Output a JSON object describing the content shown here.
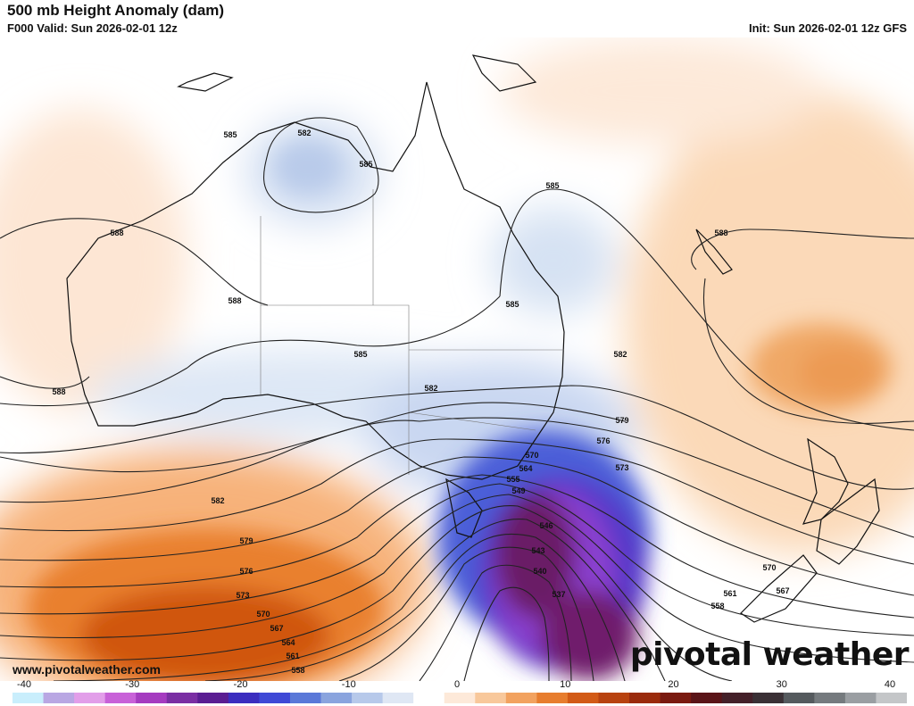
{
  "header": {
    "title": "500 mb Height Anomaly (dam)",
    "valid": "F000 Valid: Sun 2026-02-01 12z",
    "init": "Init: Sun 2026-02-01 12z GFS"
  },
  "watermark": "www.pivotalweather.com",
  "brand": "pivotal weather",
  "contour_labels": [
    {
      "v": "582"
    },
    {
      "v": "585"
    },
    {
      "v": "585"
    },
    {
      "v": "588"
    },
    {
      "v": "588"
    },
    {
      "v": "588"
    },
    {
      "v": "588"
    },
    {
      "v": "585"
    },
    {
      "v": "585"
    },
    {
      "v": "585"
    },
    {
      "v": "582"
    },
    {
      "v": "582"
    },
    {
      "v": "582"
    },
    {
      "v": "579"
    },
    {
      "v": "576"
    },
    {
      "v": "573"
    },
    {
      "v": "570"
    },
    {
      "v": "567"
    },
    {
      "v": "564"
    },
    {
      "v": "561"
    },
    {
      "v": "558"
    },
    {
      "v": "579"
    },
    {
      "v": "576"
    },
    {
      "v": "573"
    },
    {
      "v": "570"
    },
    {
      "v": "564"
    },
    {
      "v": "555"
    },
    {
      "v": "549"
    },
    {
      "v": "546"
    },
    {
      "v": "543"
    },
    {
      "v": "540"
    },
    {
      "v": "537"
    },
    {
      "v": "570"
    },
    {
      "v": "567"
    },
    {
      "v": "561"
    },
    {
      "v": "558"
    }
  ],
  "colorbar": {
    "ticks": [
      "-40",
      "-30",
      "-20",
      "-10",
      "0",
      "10",
      "20",
      "30",
      "40"
    ],
    "colors": [
      "#c9eefc",
      "#b9a7e3",
      "#e29ee9",
      "#c861d8",
      "#a53bc0",
      "#7a2ea3",
      "#5a1d92",
      "#3b2dbf",
      "#3f49d6",
      "#5a78d8",
      "#8aa4de",
      "#b7c9ea",
      "#dfe7f4",
      "#ffffff",
      "#fde9d9",
      "#f8c89b",
      "#f2a25f",
      "#e77d2e",
      "#d25a16",
      "#b8420f",
      "#9a2b0c",
      "#7a1a10",
      "#5a1418",
      "#442029",
      "#3a3035",
      "#555a5e",
      "#757a7e",
      "#9a9ea2",
      "#c4c6c8"
    ]
  }
}
